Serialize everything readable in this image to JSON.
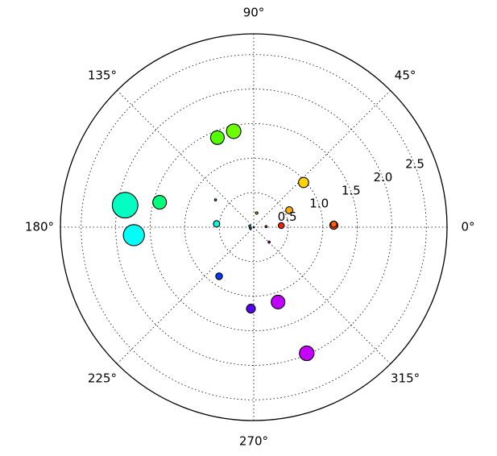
{
  "chart_data": {
    "type": "scatter",
    "projection": "polar",
    "theta_unit": "degrees",
    "r_max": 2.8,
    "grid": true,
    "angle_ticks": [
      {
        "value": 0,
        "label": "0°"
      },
      {
        "value": 45,
        "label": "45°"
      },
      {
        "value": 90,
        "label": "90°"
      },
      {
        "value": 135,
        "label": "135°"
      },
      {
        "value": 180,
        "label": "180°"
      },
      {
        "value": 225,
        "label": "225°"
      },
      {
        "value": 270,
        "label": "270°"
      },
      {
        "value": 315,
        "label": "315°"
      }
    ],
    "radial_ticks": [
      {
        "value": 0.5,
        "label": "0.5"
      },
      {
        "value": 1.0,
        "label": "1.0"
      },
      {
        "value": 1.5,
        "label": "1.5"
      },
      {
        "value": 2.0,
        "label": "2.0"
      },
      {
        "value": 2.5,
        "label": "2.5"
      }
    ],
    "radial_label_angle_deg": 22.5,
    "points": [
      {
        "theta": 1.4,
        "r": 1.16,
        "area": 70,
        "color": "#ff3a00"
      },
      {
        "theta": 2.2,
        "r": 1.16,
        "area": 40,
        "color": "#ff6000"
      },
      {
        "theta": 3.3,
        "r": 0.4,
        "area": 38,
        "color": "#ff1e00"
      },
      {
        "theta": 25.4,
        "r": 0.57,
        "area": 55,
        "color": "#ffae00"
      },
      {
        "theta": 41.9,
        "r": 0.97,
        "area": 110,
        "color": "#ffd400"
      },
      {
        "theta": 2.8,
        "r": 0.18,
        "area": 3,
        "color": "#ff2000"
      },
      {
        "theta": 78.0,
        "r": 0.21,
        "area": 6,
        "color": "#9cff00"
      },
      {
        "theta": 112.1,
        "r": 1.4,
        "area": 200,
        "color": "#55ff00"
      },
      {
        "theta": 101.8,
        "r": 1.42,
        "area": 225,
        "color": "#6cff00"
      },
      {
        "theta": 144.4,
        "r": 0.68,
        "area": 2,
        "color": "#00ff4a"
      },
      {
        "theta": 165.2,
        "r": 1.41,
        "area": 200,
        "color": "#00ff7a"
      },
      {
        "theta": 170.3,
        "r": 1.89,
        "area": 700,
        "color": "#00ffc0"
      },
      {
        "theta": 174.8,
        "r": 0.54,
        "area": 45,
        "color": "#00ffdc"
      },
      {
        "theta": 164.0,
        "r": 0.06,
        "area": 2,
        "color": "#00ffe0"
      },
      {
        "theta": 183.8,
        "r": 1.74,
        "area": 480,
        "color": "#00fff6"
      },
      {
        "theta": 234.8,
        "r": 0.87,
        "area": 50,
        "color": "#0038ff"
      },
      {
        "theta": 268.0,
        "r": 1.18,
        "area": 85,
        "color": "#5a00ff"
      },
      {
        "theta": 288.0,
        "r": 1.14,
        "area": 200,
        "color": "#c000ff"
      },
      {
        "theta": 292.8,
        "r": 1.98,
        "area": 230,
        "color": "#c800ff"
      },
      {
        "theta": 316.0,
        "r": 0.31,
        "area": 3,
        "color": "#ff00c0"
      },
      {
        "theta": 197.0,
        "r": 0.05,
        "area": 2,
        "color": "#0090ff"
      }
    ]
  }
}
